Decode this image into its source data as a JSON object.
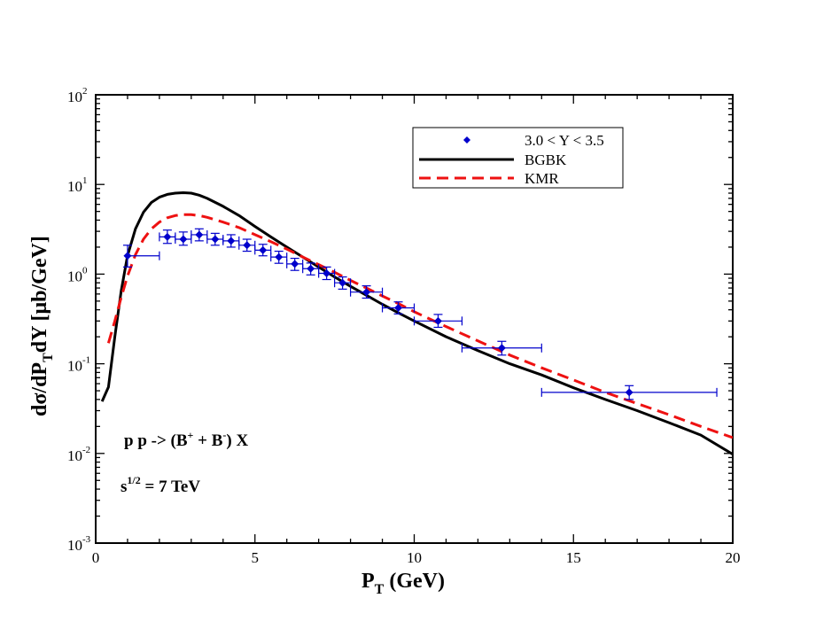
{
  "chart_data": {
    "type": "line",
    "title": "",
    "xlabel": {
      "main": "P",
      "sub": "T",
      "rest": " (GeV)"
    },
    "ylabel": {
      "p1": "dσ/dP",
      "sub": "T",
      "p2": "dY [μb/GeV]"
    },
    "xlim": [
      0,
      20
    ],
    "ylim": [
      0.001,
      100
    ],
    "yscale": "log",
    "x_ticks": [
      "0",
      "5",
      "10",
      "15",
      "20"
    ],
    "x_tick_values": [
      0,
      5,
      10,
      15,
      20
    ],
    "y_ticks": [
      {
        "base": "10",
        "exp": "-3",
        "value": 0.001
      },
      {
        "base": "10",
        "exp": "-2",
        "value": 0.01
      },
      {
        "base": "10",
        "exp": "-1",
        "value": 0.1
      },
      {
        "base": "10",
        "exp": "0",
        "value": 1
      },
      {
        "base": "10",
        "exp": "1",
        "value": 10
      },
      {
        "base": "10",
        "exp": "2",
        "value": 100
      }
    ],
    "legend": {
      "position": "top-right",
      "entries": [
        {
          "label": "3.0 < Y < 3.5",
          "style": "marker",
          "color": "#0000cc"
        },
        {
          "label": "BGBK",
          "style": "solid",
          "color": "#000000"
        },
        {
          "label": "KMR",
          "style": "dashed",
          "color": "#ee1111"
        }
      ]
    },
    "annotations": {
      "process": {
        "p1": "p p -> (B",
        "sup1": "+",
        "p2": " + B",
        "sup2": "-",
        "p3": ") X"
      },
      "energy": {
        "p1": "s",
        "sup": "1/2",
        "p2": " = 7 TeV"
      }
    },
    "series": [
      {
        "name": "3.0 < Y < 3.5",
        "kind": "points",
        "color": "#0000cc",
        "points": [
          {
            "x": 1.0,
            "xerr": [
              1.0,
              2.0
            ],
            "y": 1.6,
            "yerr": [
              1.2,
              2.1
            ]
          },
          {
            "x": 2.25,
            "xerr": [
              2.0,
              2.5
            ],
            "y": 2.6,
            "yerr": [
              2.2,
              3.1
            ]
          },
          {
            "x": 2.75,
            "xerr": [
              2.5,
              3.0
            ],
            "y": 2.45,
            "yerr": [
              2.1,
              2.95
            ]
          },
          {
            "x": 3.25,
            "xerr": [
              3.0,
              3.5
            ],
            "y": 2.75,
            "yerr": [
              2.35,
              3.2
            ]
          },
          {
            "x": 3.75,
            "xerr": [
              3.5,
              4.0
            ],
            "y": 2.45,
            "yerr": [
              2.1,
              2.85
            ]
          },
          {
            "x": 4.25,
            "xerr": [
              4.0,
              4.5
            ],
            "y": 2.35,
            "yerr": [
              2.0,
              2.75
            ]
          },
          {
            "x": 4.75,
            "xerr": [
              4.5,
              5.0
            ],
            "y": 2.1,
            "yerr": [
              1.8,
              2.45
            ]
          },
          {
            "x": 5.25,
            "xerr": [
              5.0,
              5.5
            ],
            "y": 1.85,
            "yerr": [
              1.6,
              2.15
            ]
          },
          {
            "x": 5.75,
            "xerr": [
              5.5,
              6.0
            ],
            "y": 1.55,
            "yerr": [
              1.32,
              1.8
            ]
          },
          {
            "x": 6.25,
            "xerr": [
              6.0,
              6.5
            ],
            "y": 1.3,
            "yerr": [
              1.1,
              1.5
            ]
          },
          {
            "x": 6.75,
            "xerr": [
              6.5,
              7.0
            ],
            "y": 1.15,
            "yerr": [
              0.98,
              1.33
            ]
          },
          {
            "x": 7.25,
            "xerr": [
              7.0,
              7.5
            ],
            "y": 1.02,
            "yerr": [
              0.87,
              1.2
            ]
          },
          {
            "x": 7.75,
            "xerr": [
              7.5,
              8.0
            ],
            "y": 0.8,
            "yerr": [
              0.68,
              0.93
            ]
          },
          {
            "x": 8.5,
            "xerr": [
              8.0,
              9.0
            ],
            "y": 0.63,
            "yerr": [
              0.54,
              0.74
            ]
          },
          {
            "x": 9.5,
            "xerr": [
              9.0,
              10.0
            ],
            "y": 0.42,
            "yerr": [
              0.36,
              0.49
            ]
          },
          {
            "x": 10.75,
            "xerr": [
              10.0,
              11.5
            ],
            "y": 0.3,
            "yerr": [
              0.255,
              0.355
            ]
          },
          {
            "x": 12.75,
            "xerr": [
              11.5,
              14.0
            ],
            "y": 0.15,
            "yerr": [
              0.125,
              0.178
            ]
          },
          {
            "x": 16.75,
            "xerr": [
              14.0,
              19.5
            ],
            "y": 0.048,
            "yerr": [
              0.04,
              0.057
            ]
          }
        ]
      },
      {
        "name": "BGBK",
        "kind": "line",
        "color": "#000000",
        "dash": "solid",
        "x": [
          0.2,
          0.4,
          0.6,
          0.8,
          1.0,
          1.25,
          1.5,
          1.75,
          2.0,
          2.25,
          2.5,
          2.75,
          3.0,
          3.25,
          3.5,
          4.0,
          4.5,
          5.0,
          5.5,
          6.0,
          6.5,
          7.0,
          7.5,
          8.0,
          8.5,
          9.0,
          9.5,
          10.0,
          11.0,
          12.0,
          13.0,
          14.0,
          15.0,
          16.0,
          17.0,
          18.0,
          19.0,
          20.0
        ],
        "y": [
          0.038,
          0.055,
          0.2,
          0.65,
          1.6,
          3.2,
          4.9,
          6.3,
          7.2,
          7.75,
          8.0,
          8.1,
          8.0,
          7.6,
          7.0,
          5.7,
          4.5,
          3.4,
          2.6,
          2.0,
          1.55,
          1.2,
          0.93,
          0.73,
          0.58,
          0.46,
          0.37,
          0.3,
          0.2,
          0.14,
          0.1,
          0.075,
          0.054,
          0.04,
          0.03,
          0.022,
          0.016,
          0.0098
        ]
      },
      {
        "name": "KMR",
        "kind": "line",
        "color": "#ee1111",
        "dash": "dashed",
        "x": [
          0.4,
          0.6,
          0.8,
          1.0,
          1.25,
          1.5,
          1.75,
          2.0,
          2.25,
          2.5,
          2.75,
          3.0,
          3.25,
          3.5,
          4.0,
          4.5,
          5.0,
          5.5,
          6.0,
          6.5,
          7.0,
          7.5,
          8.0,
          8.5,
          9.0,
          9.5,
          10.0,
          11.0,
          12.0,
          13.0,
          14.0,
          15.0,
          16.0,
          17.0,
          18.0,
          19.0,
          20.0
        ],
        "y": [
          0.17,
          0.3,
          0.55,
          0.95,
          1.65,
          2.45,
          3.2,
          3.8,
          4.25,
          4.5,
          4.6,
          4.6,
          4.5,
          4.3,
          3.8,
          3.3,
          2.75,
          2.3,
          1.9,
          1.55,
          1.28,
          1.05,
          0.85,
          0.7,
          0.57,
          0.47,
          0.38,
          0.26,
          0.18,
          0.125,
          0.09,
          0.066,
          0.048,
          0.036,
          0.027,
          0.02,
          0.015
        ]
      }
    ]
  }
}
